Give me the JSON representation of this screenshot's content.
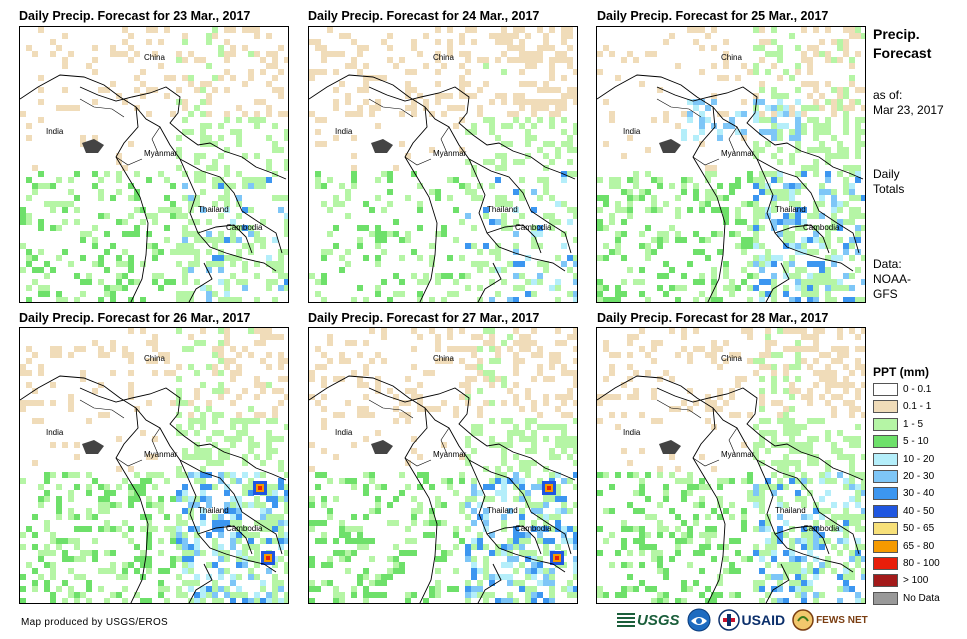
{
  "panels": [
    {
      "title": "Daily Precip. Forecast for 23 Mar., 2017"
    },
    {
      "title": "Daily Precip. Forecast for 24 Mar., 2017"
    },
    {
      "title": "Daily Precip. Forecast for 25 Mar., 2017"
    },
    {
      "title": "Daily Precip. Forecast for 26 Mar., 2017"
    },
    {
      "title": "Daily Precip. Forecast for 27 Mar., 2017"
    },
    {
      "title": "Daily Precip. Forecast for 28 Mar., 2017"
    }
  ],
  "places": {
    "china": "China",
    "india": "India",
    "myanmar": "Myanmar",
    "thailand": "Thailand",
    "cambodia": "Cambodia"
  },
  "sidebar": {
    "heading_line1": "Precip.",
    "heading_line2": "Forecast",
    "asof_label": "as of:",
    "asof_date": "Mar 23, 2017",
    "totals_line1": "Daily",
    "totals_line2": "Totals",
    "data_line1": "Data:",
    "data_line2": "NOAA-",
    "data_line3": "GFS"
  },
  "legend": {
    "title": "PPT (mm)",
    "items": [
      {
        "label": "0 - 0.1",
        "color": "#ffffff"
      },
      {
        "label": "0.1 - 1",
        "color": "#f0dcb9"
      },
      {
        "label": "1 - 5",
        "color": "#b5f5a5"
      },
      {
        "label": "5 - 10",
        "color": "#6ee06a"
      },
      {
        "label": "10 - 20",
        "color": "#b4eefa"
      },
      {
        "label": "20 - 30",
        "color": "#7ec6f7"
      },
      {
        "label": "30 - 40",
        "color": "#3c96f0"
      },
      {
        "label": "40 - 50",
        "color": "#1f56e0"
      },
      {
        "label": "50 - 65",
        "color": "#f7e079"
      },
      {
        "label": "65 - 80",
        "color": "#f59a00"
      },
      {
        "label": "80 - 100",
        "color": "#e81e0a"
      },
      {
        "label": "> 100",
        "color": "#a31a1a"
      },
      {
        "label": "No Data",
        "color": "#999999"
      }
    ]
  },
  "footer": {
    "credit": "Map produced by USGS/EROS",
    "logo_usgs": "USGS",
    "logo_usaid": "USAID",
    "logo_fews": "FEWS NET"
  }
}
